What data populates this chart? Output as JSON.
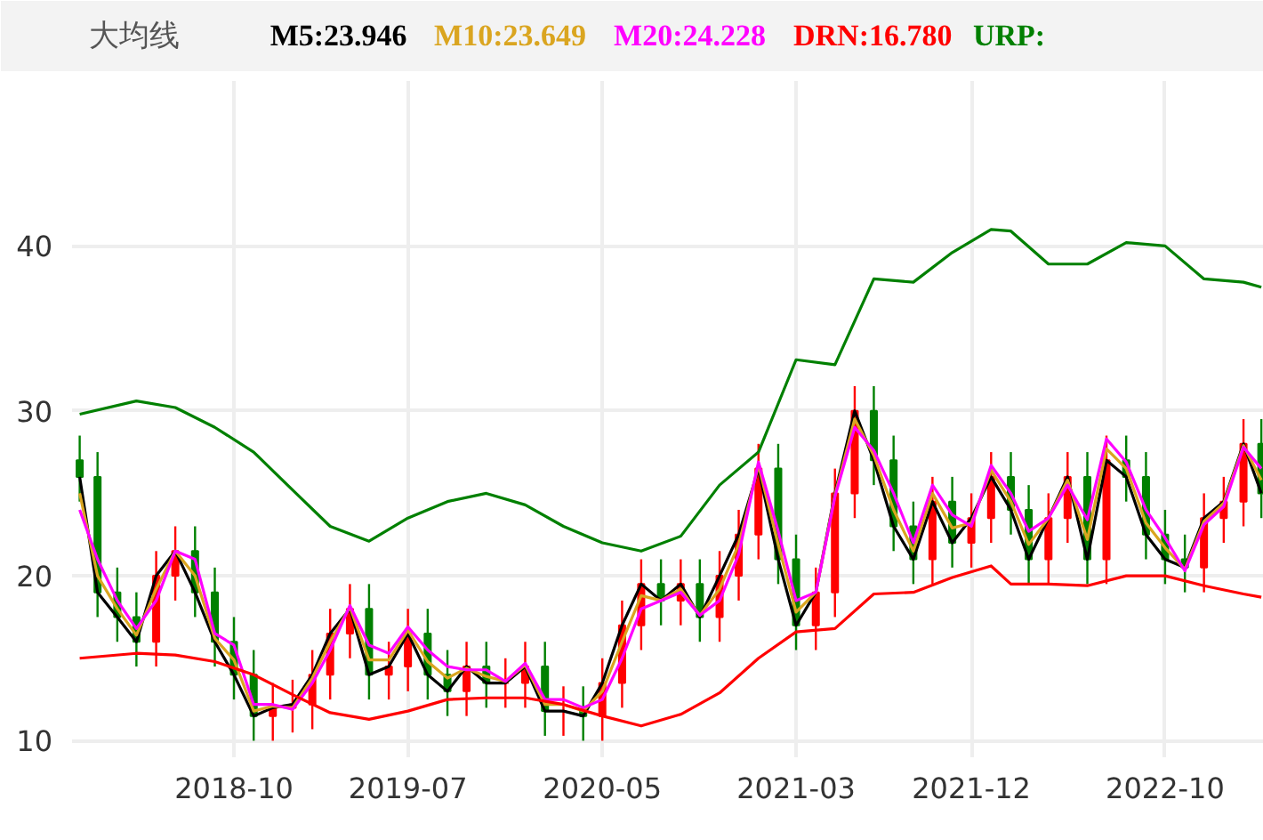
{
  "chart_data": {
    "type": "candlestick",
    "title": "大均线",
    "x": [
      "2018-02",
      "2018-03",
      "2018-04",
      "2018-05",
      "2018-06",
      "2018-07",
      "2018-08",
      "2018-09",
      "2018-10",
      "2018-11",
      "2018-12",
      "2019-01",
      "2019-02",
      "2019-03",
      "2019-04",
      "2019-05",
      "2019-06",
      "2019-07",
      "2019-08",
      "2019-09",
      "2019-10",
      "2019-11",
      "2019-12",
      "2020-01",
      "2020-02",
      "2020-03",
      "2020-04",
      "2020-05",
      "2020-06",
      "2020-07",
      "2020-08",
      "2020-09",
      "2020-10",
      "2020-11",
      "2020-12",
      "2021-01",
      "2021-02",
      "2021-03",
      "2021-04",
      "2021-05",
      "2021-06",
      "2021-07",
      "2021-08",
      "2021-09",
      "2021-10",
      "2021-11",
      "2021-12",
      "2022-01",
      "2022-02",
      "2022-03",
      "2022-04",
      "2022-05",
      "2022-06",
      "2022-07",
      "2022-08",
      "2022-09",
      "2022-10",
      "2022-11",
      "2022-12",
      "2023-01",
      "2023-02",
      "2023-03"
    ],
    "ohlc": [
      [
        27,
        28.5,
        24.5,
        26
      ],
      [
        26,
        27.5,
        17.5,
        19
      ],
      [
        19,
        20.5,
        16,
        17.5
      ],
      [
        17.5,
        19,
        14.5,
        16
      ],
      [
        16,
        21.5,
        14.5,
        20
      ],
      [
        20,
        23,
        18.5,
        21.5
      ],
      [
        21.5,
        23,
        17.5,
        19
      ],
      [
        19,
        20.5,
        14.5,
        16
      ],
      [
        16,
        17.5,
        12.5,
        14
      ],
      [
        14,
        15.5,
        10,
        11.5
      ],
      [
        11.5,
        13.5,
        10,
        12
      ],
      [
        12,
        13.7,
        10.5,
        12.2
      ],
      [
        12.2,
        15.5,
        10.7,
        14
      ],
      [
        14,
        18,
        12.5,
        16.5
      ],
      [
        16.5,
        19.5,
        15,
        18
      ],
      [
        18,
        19.5,
        12.5,
        14
      ],
      [
        14,
        16,
        12.5,
        14.5
      ],
      [
        14.5,
        18,
        13,
        16.5
      ],
      [
        16.5,
        18,
        12.5,
        14
      ],
      [
        14,
        15.5,
        11.5,
        13
      ],
      [
        13,
        16,
        11.5,
        14.5
      ],
      [
        14.5,
        16,
        12,
        13.5
      ],
      [
        13.5,
        15,
        12,
        13.5
      ],
      [
        13.5,
        16,
        12,
        14.5
      ],
      [
        14.5,
        16,
        10.3,
        11.8
      ],
      [
        11.8,
        13.3,
        10.3,
        11.8
      ],
      [
        11.8,
        13.3,
        10,
        11.5
      ],
      [
        11.5,
        15,
        10,
        13.5
      ],
      [
        13.5,
        18.5,
        12,
        17
      ],
      [
        17,
        21,
        15.5,
        19.5
      ],
      [
        19.5,
        21,
        17,
        18.5
      ],
      [
        18.5,
        21,
        17,
        19.5
      ],
      [
        19.5,
        21,
        16,
        17.5
      ],
      [
        17.5,
        21.5,
        16,
        20
      ],
      [
        20,
        24,
        18.5,
        22.5
      ],
      [
        22.5,
        28,
        21,
        26.5
      ],
      [
        26.5,
        28,
        19.5,
        21
      ],
      [
        21,
        22.5,
        15.5,
        17
      ],
      [
        17,
        20.5,
        15.5,
        19
      ],
      [
        19,
        26.5,
        17.5,
        25
      ],
      [
        25,
        31.5,
        23.5,
        30
      ],
      [
        30,
        31.5,
        25.5,
        27
      ],
      [
        27,
        28.5,
        21.5,
        23
      ],
      [
        23,
        24.5,
        19.5,
        21
      ],
      [
        21,
        26,
        19.5,
        24.5
      ],
      [
        24.5,
        26,
        20.5,
        22
      ],
      [
        22,
        25,
        20.5,
        23.5
      ],
      [
        23.5,
        27.5,
        22,
        26
      ],
      [
        26,
        27.5,
        22.5,
        24
      ],
      [
        24,
        25.5,
        19.5,
        21
      ],
      [
        21,
        25,
        19.5,
        23.5
      ],
      [
        23.5,
        27.5,
        22,
        26
      ],
      [
        26,
        27.5,
        19.5,
        21
      ],
      [
        21,
        28.5,
        19.5,
        27
      ],
      [
        27,
        28.5,
        24.5,
        26
      ],
      [
        26,
        27.5,
        21,
        22.5
      ],
      [
        22.5,
        24,
        19.5,
        21
      ],
      [
        21,
        22.5,
        19,
        20.5
      ],
      [
        20.5,
        25,
        19,
        23.5
      ],
      [
        23.5,
        26,
        22,
        24.5
      ],
      [
        24.5,
        29.5,
        23,
        28
      ],
      [
        28,
        29.5,
        23.5,
        25
      ]
    ],
    "colors": [
      "#008000",
      "#008000",
      "#008000",
      "#008000",
      "#ff0000",
      "#ff0000",
      "#008000",
      "#008000",
      "#008000",
      "#008000",
      "#ff0000",
      "#ff0000",
      "#ff0000",
      "#ff0000",
      "#ff0000",
      "#008000",
      "#ff0000",
      "#ff0000",
      "#008000",
      "#008000",
      "#ff0000",
      "#008000",
      "#ff0000",
      "#ff0000",
      "#008000",
      "#ff0000",
      "#008000",
      "#ff0000",
      "#ff0000",
      "#ff0000",
      "#008000",
      "#ff0000",
      "#008000",
      "#ff0000",
      "#ff0000",
      "#ff0000",
      "#008000",
      "#008000",
      "#ff0000",
      "#ff0000",
      "#ff0000",
      "#008000",
      "#008000",
      "#008000",
      "#ff0000",
      "#008000",
      "#ff0000",
      "#ff0000",
      "#008000",
      "#008000",
      "#ff0000",
      "#ff0000",
      "#008000",
      "#ff0000",
      "#008000",
      "#008000",
      "#008000",
      "#008000",
      "#ff0000",
      "#ff0000",
      "#ff0000",
      "#008000"
    ],
    "series": [
      {
        "type": "line",
        "name": "M5:23.946",
        "color": "#000000",
        "values": [
          26,
          19,
          17.5,
          16,
          20,
          21.5,
          19,
          16,
          14,
          11.5,
          12,
          12.2,
          14,
          16.5,
          18,
          14,
          14.5,
          16.5,
          14,
          13,
          14.5,
          13.5,
          13.5,
          14.5,
          11.8,
          11.8,
          11.5,
          13.5,
          17,
          19.5,
          18.5,
          19.5,
          17.5,
          20,
          22.5,
          26.5,
          21,
          17,
          19,
          25,
          30,
          27,
          23,
          21,
          24.5,
          22,
          23.5,
          26,
          24,
          21,
          23.5,
          26,
          21,
          27,
          26,
          22.5,
          21,
          20.5,
          23.5,
          24.5,
          28,
          25
        ]
      },
      {
        "type": "line",
        "name": "M10:23.649",
        "color": "#daa520",
        "values": [
          25,
          20,
          18,
          16.4,
          19.2,
          21.5,
          20,
          16.2,
          14.9,
          11.8,
          12.1,
          12,
          13.8,
          16,
          18.1,
          14.9,
          14.9,
          16.7,
          14.8,
          13.8,
          14.4,
          13.9,
          13.6,
          14.6,
          12.2,
          12.2,
          11.8,
          13,
          16,
          18.8,
          18.5,
          19.2,
          17.6,
          19.2,
          21.9,
          26.7,
          21.9,
          17.8,
          19,
          24.9,
          29.5,
          27.3,
          24,
          21.5,
          25,
          22.9,
          23.2,
          26.4,
          24.5,
          21.9,
          23.5,
          25.8,
          22.2,
          27.7,
          26.5,
          23.2,
          21.7,
          20.4,
          23.3,
          24.4,
          27.9,
          25.8
        ]
      },
      {
        "type": "line",
        "name": "M20:24.228",
        "color": "#ff00ff",
        "values": [
          24,
          21,
          18.5,
          16.8,
          18.5,
          21.5,
          21,
          16.5,
          15.8,
          12.2,
          12.2,
          11.9,
          13.5,
          15.5,
          18.2,
          15.8,
          15.3,
          16.9,
          15.5,
          14.5,
          14.3,
          14.3,
          13.6,
          14.7,
          12.5,
          12.5,
          12,
          12.5,
          15,
          18,
          18.5,
          19,
          17.6,
          18.5,
          21.3,
          26.9,
          22.7,
          18.5,
          19,
          24.8,
          29,
          27.6,
          25,
          22,
          25.5,
          23.7,
          23,
          26.7,
          25,
          22.7,
          23.5,
          25.5,
          23.4,
          28.3,
          26.9,
          24,
          22.3,
          20.3,
          23.1,
          24.2,
          27.8,
          26.5
        ]
      },
      {
        "type": "line",
        "name": "DRN:16.780",
        "color": "#ff0000",
        "x": [
          "2018-02",
          "2018-05",
          "2018-07",
          "2018-09",
          "2018-11",
          "2019-01",
          "2019-03",
          "2019-05",
          "2019-07",
          "2019-09",
          "2019-11",
          "2020-01",
          "2020-03",
          "2020-05",
          "2020-07",
          "2020-09",
          "2020-11",
          "2021-01",
          "2021-03",
          "2021-05",
          "2021-07",
          "2021-09",
          "2021-11",
          "2022-01",
          "2022-02",
          "2022-04",
          "2022-06",
          "2022-08",
          "2022-10",
          "2022-12",
          "2023-02",
          "2023-03"
        ],
        "values": [
          15,
          15.3,
          15.2,
          14.8,
          14,
          12.8,
          11.7,
          11.3,
          11.8,
          12.5,
          12.6,
          12.6,
          12.2,
          11.5,
          10.9,
          11.6,
          12.9,
          15,
          16.6,
          16.8,
          18.9,
          19,
          19.9,
          20.6,
          19.5,
          19.5,
          19.4,
          20,
          20,
          19.4,
          18.9,
          18.7
        ]
      },
      {
        "type": "line",
        "name": "URP:",
        "color": "#008000",
        "x": [
          "2018-02",
          "2018-05",
          "2018-07",
          "2018-09",
          "2018-11",
          "2019-01",
          "2019-03",
          "2019-05",
          "2019-07",
          "2019-09",
          "2019-11",
          "2020-01",
          "2020-03",
          "2020-05",
          "2020-07",
          "2020-09",
          "2020-11",
          "2021-01",
          "2021-03",
          "2021-05",
          "2021-07",
          "2021-09",
          "2021-11",
          "2022-01",
          "2022-02",
          "2022-04",
          "2022-06",
          "2022-08",
          "2022-10",
          "2022-12",
          "2023-02",
          "2023-03"
        ],
        "values": [
          29.8,
          30.6,
          30.2,
          29,
          27.5,
          25.2,
          23,
          22.1,
          23.5,
          24.5,
          25,
          24.3,
          23,
          22,
          21.5,
          22.4,
          25.5,
          27.5,
          33.1,
          32.8,
          38,
          37.8,
          39.6,
          41,
          40.9,
          38.9,
          38.9,
          40.2,
          40,
          38,
          37.8,
          37.5
        ]
      }
    ],
    "xlim": [
      "2018-01-20",
      "2023-03-05"
    ],
    "xticks": [
      "2018-10",
      "2019-07",
      "2020-05",
      "2021-03",
      "2021-12",
      "2022-10"
    ],
    "ylim": [
      9,
      50
    ],
    "yticks": [
      10,
      20,
      30,
      40
    ],
    "grid": true,
    "marker": "none",
    "line_style": "solid"
  }
}
